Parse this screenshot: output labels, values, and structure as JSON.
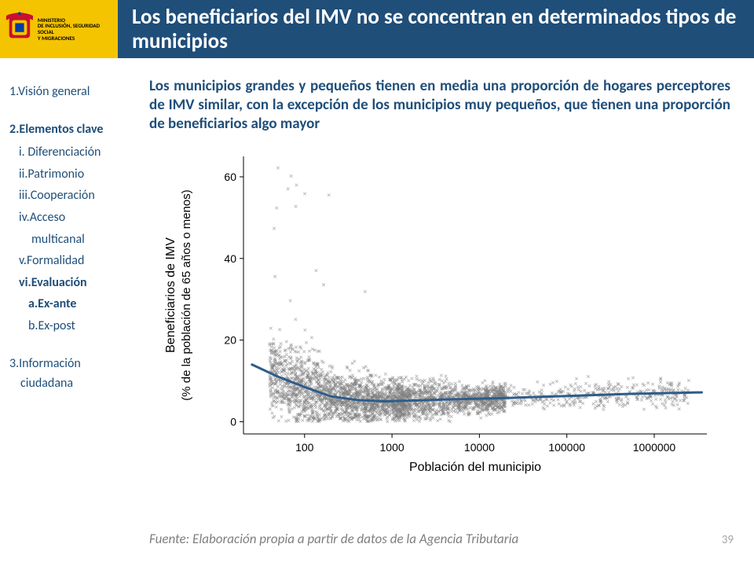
{
  "header": {
    "ministry_line1": "MINISTERIO",
    "ministry_line2": "DE INCLUSIÓN, SEGURIDAD SOCIAL",
    "ministry_line3": "Y MIGRACIONES",
    "title": "Los beneficiarios del IMV no se concentran en determinados tipos de municipios",
    "logo_bg": "#f5c400",
    "title_bg": "#1f4e79",
    "title_color": "#ffffff"
  },
  "nav": {
    "item1": "1.Visión general",
    "item2": "2.Elementos clave",
    "sub_i": "i. Diferenciación",
    "sub_ii": "ii.Patrimonio",
    "sub_iii": "iii.Cooperación",
    "sub_iv_a": "iv.Acceso",
    "sub_iv_b": "multicanal",
    "sub_v": "v.Formalidad",
    "sub_vi": "vi.Evaluación",
    "sub_vi_a": "a.Ex-ante",
    "sub_vi_b": "b.Ex-post",
    "item3_a": "3.Información",
    "item3_b": "ciudadana",
    "color": "#1f4e79"
  },
  "subtitle": "Los municipios grandes y pequeños tienen en media una proporción de hogares perceptores de IMV similar, con la excepción de los municipios muy pequeños, que tienen una proporción de beneficiarios algo mayor",
  "chart": {
    "type": "scatter",
    "xlabel": "Población del municipio",
    "ylabel_line1": "Beneficiarios de IMV",
    "ylabel_line2": "(% de la población de 65 años o menos)",
    "x_scale": "log",
    "x_ticks": [
      100,
      1000,
      10000,
      100000,
      1000000
    ],
    "x_tick_labels": [
      "100",
      "1000",
      "10000",
      "100000",
      "1000000"
    ],
    "xlim": [
      20,
      4000000
    ],
    "y_scale": "linear",
    "y_ticks": [
      0,
      20,
      40,
      60
    ],
    "ylim": [
      -3,
      65
    ],
    "point_color": "#808080",
    "point_opacity": 0.55,
    "point_marker": "x",
    "point_size": 3.5,
    "line_color": "#2e5c8a",
    "line_width": 3,
    "axis_color": "#000000",
    "tick_fontsize": 14,
    "label_fontsize": 14,
    "background": "#ffffff",
    "smooth_line": [
      [
        25,
        14
      ],
      [
        50,
        11
      ],
      [
        100,
        8.5
      ],
      [
        200,
        6.2
      ],
      [
        400,
        5.3
      ],
      [
        800,
        5.0
      ],
      [
        2000,
        5.2
      ],
      [
        5000,
        5.5
      ],
      [
        20000,
        5.8
      ],
      [
        100000,
        6.3
      ],
      [
        500000,
        6.8
      ],
      [
        3500000,
        7.2
      ]
    ],
    "n_points_approx": 3500
  },
  "footer": {
    "source": "Fuente: Elaboración propia a partir de datos de la Agencia Tributaria",
    "page": "39",
    "source_color": "#7f7f7f",
    "page_color": "#a6a6a6"
  }
}
